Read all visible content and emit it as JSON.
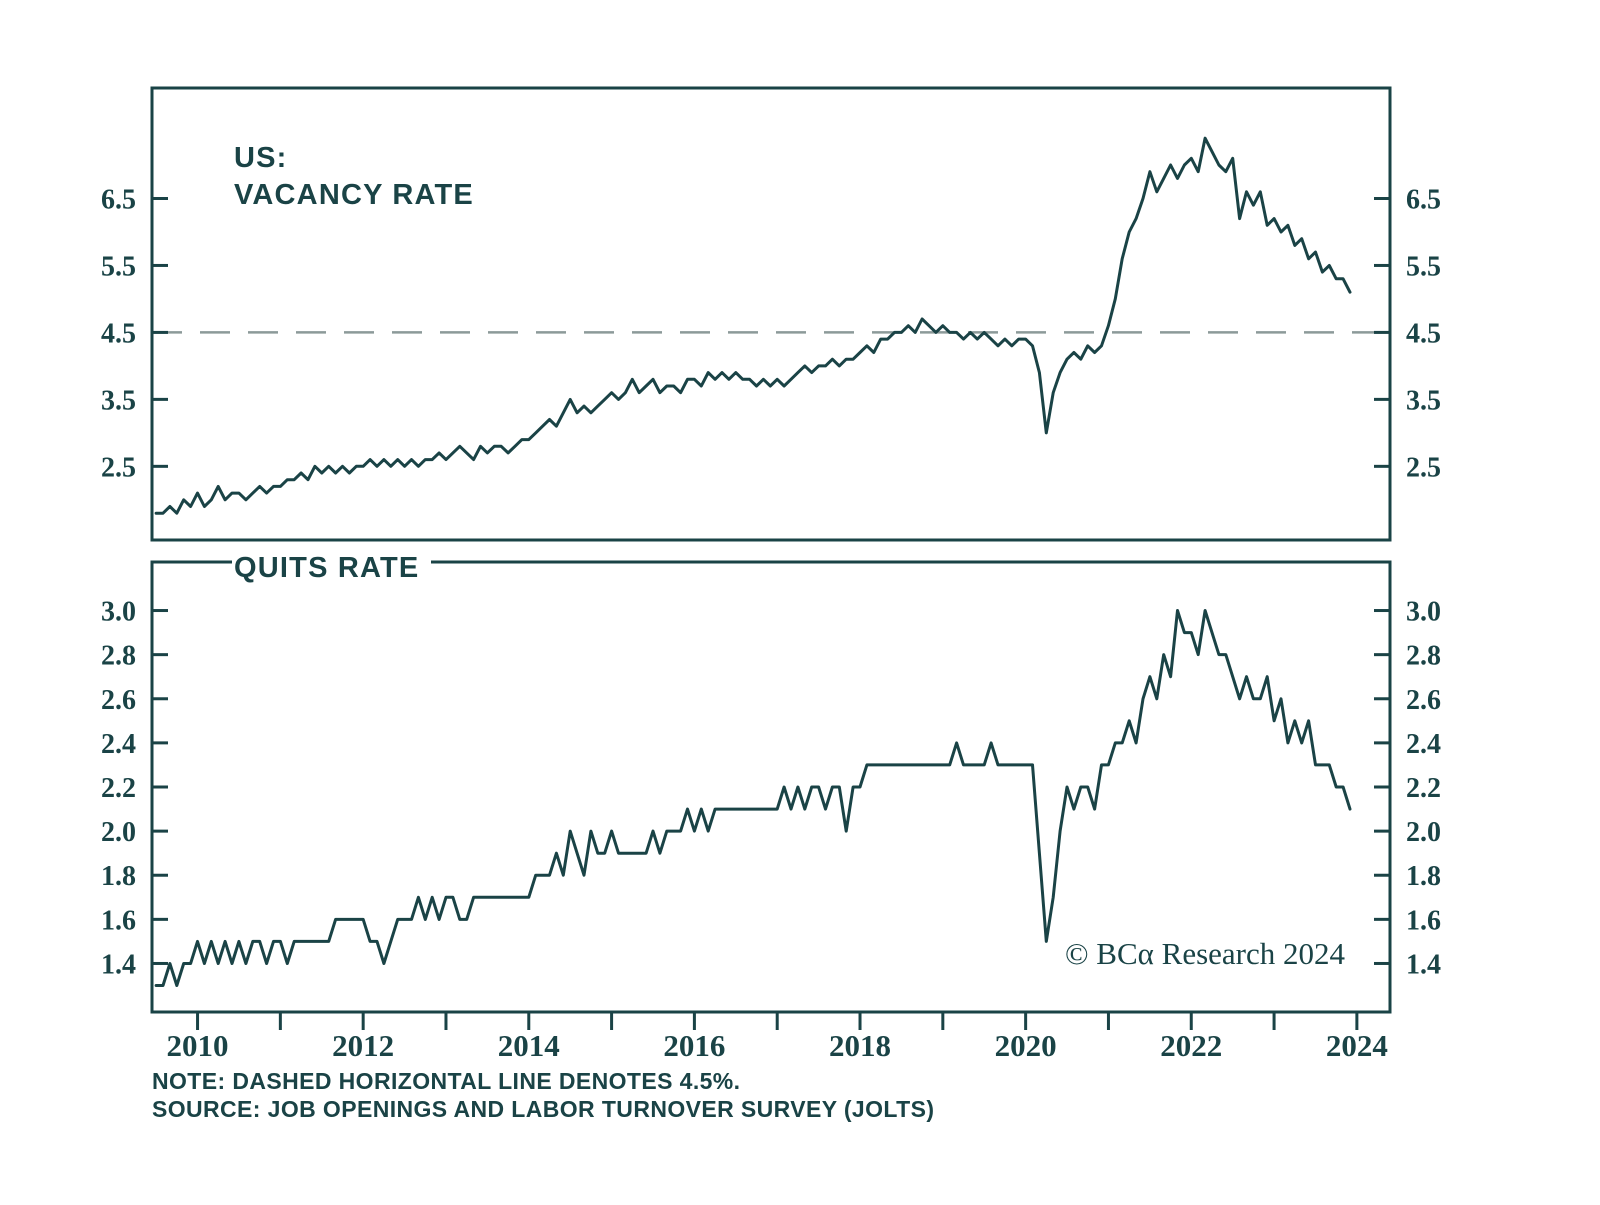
{
  "colors": {
    "line": "#1a4346",
    "reference": "#8c9a99",
    "background": "#ffffff"
  },
  "branding": {
    "copyright": "© BCα Research 2024"
  },
  "footer": {
    "note": "NOTE: DASHED HORIZONTAL LINE DENOTES 4.5%.",
    "source": "SOURCE: JOB OPENINGS AND LABOR TURNOVER SURVEY (JOLTS)"
  },
  "chart_data": [
    {
      "id": "vacancy",
      "type": "line",
      "title_lines": [
        "US:",
        "VACANCY RATE"
      ],
      "x_start": 2009.5,
      "x_step": 0.08333,
      "xlim": [
        2009.45,
        2024.4
      ],
      "ylim": [
        1.4,
        8.15
      ],
      "y_ticks": [
        "2.5",
        "3.5",
        "4.5",
        "5.5",
        "6.5"
      ],
      "x_tick_labels": [
        "2010",
        "2012",
        "2014",
        "2016",
        "2018",
        "2020",
        "2022",
        "2024"
      ],
      "reference_line": 4.5,
      "unit": "percent",
      "frequency": "monthly",
      "values": [
        1.8,
        1.8,
        1.9,
        1.8,
        2.0,
        1.9,
        2.1,
        1.9,
        2.0,
        2.2,
        2.0,
        2.1,
        2.1,
        2.0,
        2.1,
        2.2,
        2.1,
        2.2,
        2.2,
        2.3,
        2.3,
        2.4,
        2.3,
        2.5,
        2.4,
        2.5,
        2.4,
        2.5,
        2.4,
        2.5,
        2.5,
        2.6,
        2.5,
        2.6,
        2.5,
        2.6,
        2.5,
        2.6,
        2.5,
        2.6,
        2.6,
        2.7,
        2.6,
        2.7,
        2.8,
        2.7,
        2.6,
        2.8,
        2.7,
        2.8,
        2.8,
        2.7,
        2.8,
        2.9,
        2.9,
        3.0,
        3.1,
        3.2,
        3.1,
        3.3,
        3.5,
        3.3,
        3.4,
        3.3,
        3.4,
        3.5,
        3.6,
        3.5,
        3.6,
        3.8,
        3.6,
        3.7,
        3.8,
        3.6,
        3.7,
        3.7,
        3.6,
        3.8,
        3.8,
        3.7,
        3.9,
        3.8,
        3.9,
        3.8,
        3.9,
        3.8,
        3.8,
        3.7,
        3.8,
        3.7,
        3.8,
        3.7,
        3.8,
        3.9,
        4.0,
        3.9,
        4.0,
        4.0,
        4.1,
        4.0,
        4.1,
        4.1,
        4.2,
        4.3,
        4.2,
        4.4,
        4.4,
        4.5,
        4.5,
        4.6,
        4.5,
        4.7,
        4.6,
        4.5,
        4.6,
        4.5,
        4.5,
        4.4,
        4.5,
        4.4,
        4.5,
        4.4,
        4.3,
        4.4,
        4.3,
        4.4,
        4.4,
        4.3,
        3.9,
        3.0,
        3.6,
        3.9,
        4.1,
        4.2,
        4.1,
        4.3,
        4.2,
        4.3,
        4.6,
        5.0,
        5.6,
        6.0,
        6.2,
        6.5,
        6.9,
        6.6,
        6.8,
        7.0,
        6.8,
        7.0,
        7.1,
        6.9,
        7.4,
        7.2,
        7.0,
        6.9,
        7.1,
        6.2,
        6.6,
        6.4,
        6.6,
        6.1,
        6.2,
        6.0,
        6.1,
        5.8,
        5.9,
        5.6,
        5.7,
        5.4,
        5.5,
        5.3,
        5.3,
        5.1
      ]
    },
    {
      "id": "quits",
      "type": "line",
      "title_lines": [
        "QUITS RATE"
      ],
      "x_start": 2009.5,
      "x_step": 0.08333,
      "xlim": [
        2009.45,
        2024.4
      ],
      "ylim": [
        1.18,
        3.22
      ],
      "y_ticks": [
        "1.4",
        "1.6",
        "1.8",
        "2.0",
        "2.2",
        "2.4",
        "2.6",
        "2.8",
        "3.0"
      ],
      "x_tick_labels": [
        "2010",
        "2012",
        "2014",
        "2016",
        "2018",
        "2020",
        "2022",
        "2024"
      ],
      "reference_line": null,
      "unit": "percent",
      "frequency": "monthly",
      "values": [
        1.3,
        1.3,
        1.4,
        1.3,
        1.4,
        1.4,
        1.5,
        1.4,
        1.5,
        1.4,
        1.5,
        1.4,
        1.5,
        1.4,
        1.5,
        1.5,
        1.4,
        1.5,
        1.5,
        1.4,
        1.5,
        1.5,
        1.5,
        1.5,
        1.5,
        1.5,
        1.6,
        1.6,
        1.6,
        1.6,
        1.6,
        1.5,
        1.5,
        1.4,
        1.5,
        1.6,
        1.6,
        1.6,
        1.7,
        1.6,
        1.7,
        1.6,
        1.7,
        1.7,
        1.6,
        1.6,
        1.7,
        1.7,
        1.7,
        1.7,
        1.7,
        1.7,
        1.7,
        1.7,
        1.7,
        1.8,
        1.8,
        1.8,
        1.9,
        1.8,
        2.0,
        1.9,
        1.8,
        2.0,
        1.9,
        1.9,
        2.0,
        1.9,
        1.9,
        1.9,
        1.9,
        1.9,
        2.0,
        1.9,
        2.0,
        2.0,
        2.0,
        2.1,
        2.0,
        2.1,
        2.0,
        2.1,
        2.1,
        2.1,
        2.1,
        2.1,
        2.1,
        2.1,
        2.1,
        2.1,
        2.1,
        2.2,
        2.1,
        2.2,
        2.1,
        2.2,
        2.2,
        2.1,
        2.2,
        2.2,
        2.0,
        2.2,
        2.2,
        2.3,
        2.3,
        2.3,
        2.3,
        2.3,
        2.3,
        2.3,
        2.3,
        2.3,
        2.3,
        2.3,
        2.3,
        2.3,
        2.4,
        2.3,
        2.3,
        2.3,
        2.3,
        2.4,
        2.3,
        2.3,
        2.3,
        2.3,
        2.3,
        2.3,
        1.9,
        1.5,
        1.7,
        2.0,
        2.2,
        2.1,
        2.2,
        2.2,
        2.1,
        2.3,
        2.3,
        2.4,
        2.4,
        2.5,
        2.4,
        2.6,
        2.7,
        2.6,
        2.8,
        2.7,
        3.0,
        2.9,
        2.9,
        2.8,
        3.0,
        2.9,
        2.8,
        2.8,
        2.7,
        2.6,
        2.7,
        2.6,
        2.6,
        2.7,
        2.5,
        2.6,
        2.4,
        2.5,
        2.4,
        2.5,
        2.3,
        2.3,
        2.3,
        2.2,
        2.2,
        2.1
      ]
    }
  ]
}
